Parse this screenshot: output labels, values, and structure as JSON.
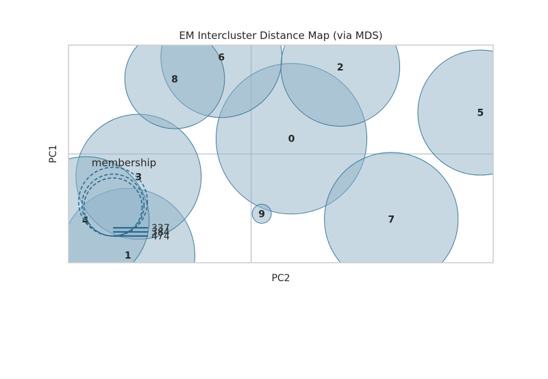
{
  "chart_data": {
    "type": "scatter",
    "title": "EM Intercluster Distance Map (via MDS)",
    "xlabel": "PC2",
    "ylabel": "PC1",
    "xlim": [
      -1.0,
      1.0
    ],
    "ylim": [
      -1.0,
      1.0
    ],
    "grid": false,
    "crosshair": {
      "x": -0.14,
      "y": 0.0
    },
    "colors": {
      "bubble_fill": "#8fb1c7",
      "bubble_edge": "#3d7a98",
      "legend_stroke": "#2a6a8e",
      "axes_edge": "#cccccc",
      "crosshair": "#b8c2ca",
      "text": "#262626"
    },
    "clusters": [
      {
        "label": "0",
        "x": 0.05,
        "y": 0.14,
        "r": 0.355
      },
      {
        "label": "1",
        "x": -0.72,
        "y": -0.93,
        "r": 0.315
      },
      {
        "label": "2",
        "x": 0.28,
        "y": 0.8,
        "r": 0.28
      },
      {
        "label": "3",
        "x": -0.67,
        "y": -0.21,
        "r": 0.295
      },
      {
        "label": "4",
        "x": -0.92,
        "y": -0.61,
        "r": 0.3
      },
      {
        "label": "5",
        "x": 0.94,
        "y": 0.38,
        "r": 0.295
      },
      {
        "label": "6",
        "x": -0.28,
        "y": 0.89,
        "r": 0.285
      },
      {
        "label": "7",
        "x": 0.52,
        "y": -0.6,
        "r": 0.315
      },
      {
        "label": "8",
        "x": -0.5,
        "y": 0.69,
        "r": 0.235
      },
      {
        "label": "9",
        "x": -0.09,
        "y": -0.55,
        "r": 0.045
      }
    ],
    "legend": {
      "title": "membership",
      "items": [
        {
          "label": "337",
          "r": 0.137
        },
        {
          "label": "384",
          "r": 0.146
        },
        {
          "label": "474",
          "r": 0.162
        }
      ]
    }
  }
}
